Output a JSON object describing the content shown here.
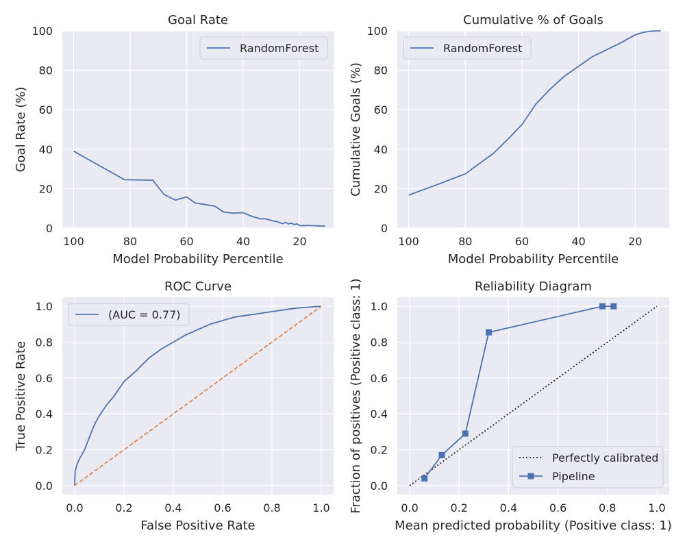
{
  "colors": {
    "axes_bg": "#EAEAF2",
    "grid": "#FFFFFF",
    "series_blue": "#4C72B0",
    "series_orange": "#DD8452",
    "diagonal_black": "#262626"
  },
  "chart_data": [
    {
      "type": "line",
      "title": "Goal Rate",
      "xlabel": "Model Probability Percentile",
      "ylabel": "Goal Rate (%)",
      "xlim": [
        104,
        8
      ],
      "ylim": [
        0,
        100
      ],
      "xticks": [
        100,
        80,
        60,
        40,
        20
      ],
      "yticks": [
        0,
        20,
        40,
        60,
        80,
        100
      ],
      "grid": true,
      "legend": "top-right",
      "series": [
        {
          "name": "RandomForest",
          "color": "#4C72B0",
          "style": "solid",
          "x": [
            100,
            82,
            72,
            68,
            64,
            60,
            57,
            54,
            50,
            47,
            44,
            40,
            37,
            34,
            32,
            29,
            28,
            26,
            25,
            24,
            23,
            22,
            21,
            20,
            19,
            18,
            17,
            15,
            13,
            11
          ],
          "y": [
            39,
            24.5,
            24.3,
            17,
            14.2,
            15.8,
            12.7,
            12.1,
            11.1,
            8.2,
            7.6,
            7.8,
            6,
            4.7,
            4.7,
            3.5,
            3.3,
            2.2,
            2.9,
            2.1,
            2.6,
            1.8,
            2.2,
            1.3,
            1.3,
            1.3,
            1.4,
            1.2,
            1.1,
            1.0
          ]
        }
      ]
    },
    {
      "type": "line",
      "title": "Cumulative % of Goals",
      "xlabel": "Model Probability Percentile",
      "ylabel": "Cumulative Goals (%)",
      "xlim": [
        104,
        8
      ],
      "ylim": [
        0,
        100
      ],
      "xticks": [
        100,
        80,
        60,
        40,
        20
      ],
      "yticks": [
        0,
        20,
        40,
        60,
        80,
        100
      ],
      "grid": true,
      "legend": "top-left",
      "series": [
        {
          "name": "RandomForest",
          "color": "#4C72B0",
          "style": "solid",
          "x": [
            100,
            90,
            80,
            70,
            65,
            60,
            55,
            50,
            45,
            40,
            35,
            30,
            25,
            20,
            17,
            14,
            11
          ],
          "y": [
            16.7,
            22,
            27.5,
            38,
            45,
            52.5,
            63,
            70.5,
            77,
            82,
            87,
            90.5,
            94,
            98,
            99.3,
            99.9,
            100
          ]
        }
      ]
    },
    {
      "type": "line",
      "title": "ROC Curve",
      "xlabel": "False Positive Rate",
      "ylabel": "True Positive Rate",
      "xlim": [
        -0.05,
        1.05
      ],
      "ylim": [
        -0.05,
        1.05
      ],
      "xticks": [
        "0.0",
        "0.2",
        "0.4",
        "0.6",
        "0.8",
        "1.0"
      ],
      "yticks": [
        "0.0",
        "0.2",
        "0.4",
        "0.6",
        "0.8",
        "1.0"
      ],
      "grid": true,
      "legend": "top-left",
      "series": [
        {
          "name": "(AUC = 0.77)",
          "color": "#4C72B0",
          "style": "solid",
          "x": [
            0,
            0.002,
            0.01,
            0.02,
            0.04,
            0.06,
            0.08,
            0.1,
            0.13,
            0.16,
            0.2,
            0.25,
            0.3,
            0.35,
            0.4,
            0.45,
            0.5,
            0.55,
            0.6,
            0.65,
            0.7,
            0.75,
            0.8,
            0.85,
            0.9,
            0.95,
            1.0
          ],
          "y": [
            0,
            0.08,
            0.12,
            0.15,
            0.2,
            0.27,
            0.34,
            0.39,
            0.45,
            0.5,
            0.58,
            0.64,
            0.71,
            0.76,
            0.8,
            0.84,
            0.87,
            0.9,
            0.92,
            0.94,
            0.95,
            0.96,
            0.97,
            0.98,
            0.99,
            0.995,
            1.0
          ]
        },
        {
          "color": "#DD8452",
          "style": "dashed",
          "x": [
            0,
            1
          ],
          "y": [
            0,
            1
          ]
        }
      ]
    },
    {
      "type": "line",
      "title": "Reliability Diagram",
      "xlabel": "Mean predicted probability (Positive class: 1)",
      "ylabel": "Fraction of positives (Positive class: 1)",
      "xlim": [
        -0.05,
        1.05
      ],
      "ylim": [
        -0.05,
        1.05
      ],
      "xticks": [
        "0.0",
        "0.2",
        "0.4",
        "0.6",
        "0.8",
        "1.0"
      ],
      "yticks": [
        "0.0",
        "0.2",
        "0.4",
        "0.6",
        "0.8",
        "1.0"
      ],
      "grid": true,
      "legend": "bottom-right",
      "series": [
        {
          "name": "Perfectly calibrated",
          "color": "#262626",
          "style": "dotted",
          "x": [
            0,
            1
          ],
          "y": [
            0,
            1
          ]
        },
        {
          "name": "Pipeline",
          "color": "#4C72B0",
          "style": "solid",
          "marker": "square",
          "x": [
            0.06,
            0.13,
            0.225,
            0.32,
            0.78,
            0.825
          ],
          "y": [
            0.04,
            0.17,
            0.29,
            0.855,
            1.0,
            1.0
          ]
        }
      ]
    }
  ]
}
